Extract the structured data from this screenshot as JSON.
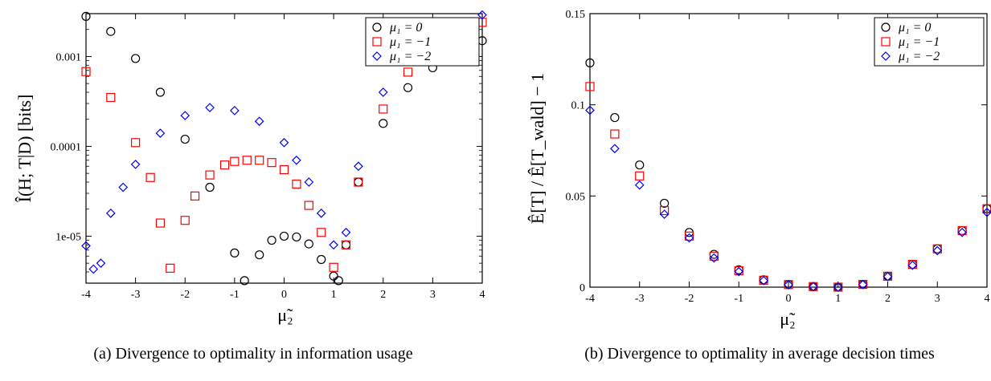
{
  "captions": {
    "a": "(a) Divergence to optimality in information usage",
    "b": "(b) Divergence to optimality in average decision times"
  },
  "colors": {
    "mu0": "#000000",
    "mu1": "#ff0000",
    "mu2": "#0000ff"
  },
  "chart_data": [
    {
      "type": "scatter",
      "xlabel": "μ̃₂",
      "ylabel": "Î(H; T|D) [bits]",
      "yscale": "log",
      "xlim": [
        -4,
        4
      ],
      "ylim": [
        3e-06,
        0.003
      ],
      "xticks": [
        "-4",
        "-3",
        "-2",
        "-1",
        "0",
        "1",
        "2",
        "3",
        "4"
      ],
      "yticks": [
        "1e-05",
        "0.0001",
        "0.001"
      ],
      "legend_position": "top-right",
      "series": [
        {
          "name": "μ₁ = 0",
          "marker": "circle",
          "color": "#000000",
          "x": [
            -4,
            -3.5,
            -3,
            -2.5,
            -2,
            -1.5,
            -1,
            -0.8,
            -0.5,
            -0.25,
            0,
            0.25,
            0.5,
            0.75,
            1,
            1.1,
            1.25,
            1.5,
            2,
            2.5,
            3,
            3.5,
            4
          ],
          "y": [
            0.0028,
            0.0019,
            0.00095,
            0.0004,
            0.00012,
            3.5e-05,
            6.5e-06,
            3.2e-06,
            6.2e-06,
            9e-06,
            1e-05,
            9.8e-06,
            8.2e-06,
            5.5e-06,
            3.6e-06,
            3.2e-06,
            8e-06,
            4e-05,
            0.00018,
            0.00045,
            0.00075,
            0.0011,
            0.0015
          ]
        },
        {
          "name": "μ₁ = −1",
          "marker": "square",
          "color": "#ff0000",
          "x": [
            -4,
            -3.5,
            -3,
            -2.7,
            -2.5,
            -2.3,
            -2,
            -1.8,
            -1.5,
            -1.2,
            -1,
            -0.75,
            -0.5,
            -0.25,
            0,
            0.25,
            0.5,
            0.75,
            1,
            1.25,
            1.5,
            2,
            2.5,
            3,
            3.5,
            4
          ],
          "y": [
            0.00068,
            0.00035,
            0.00011,
            4.5e-05,
            1.4e-05,
            4.4e-06,
            1.5e-05,
            2.8e-05,
            4.8e-05,
            6.2e-05,
            6.8e-05,
            7e-05,
            7e-05,
            6.6e-05,
            5.5e-05,
            3.8e-05,
            2.2e-05,
            1.1e-05,
            4.5e-06,
            8e-06,
            4e-05,
            0.00026,
            0.00067,
            0.0011,
            0.0016,
            0.0024
          ]
        },
        {
          "name": "μ₁ = −2",
          "marker": "diamond",
          "color": "#0000ff",
          "x": [
            -4,
            -3.85,
            -3.7,
            -3.5,
            -3.25,
            -3,
            -2.5,
            -2,
            -1.5,
            -1,
            -0.5,
            0,
            0.25,
            0.5,
            0.75,
            1,
            1.25,
            1.5,
            2,
            2.5,
            3,
            3.5,
            4
          ],
          "y": [
            7.8e-06,
            4.3e-06,
            5e-06,
            1.8e-05,
            3.5e-05,
            6.3e-05,
            0.00014,
            0.00022,
            0.00027,
            0.00025,
            0.00019,
            0.00011,
            7e-05,
            4e-05,
            1.8e-05,
            8e-06,
            1.1e-05,
            6e-05,
            0.0004,
            0.00095,
            0.0016,
            0.0022,
            0.0029
          ]
        }
      ]
    },
    {
      "type": "scatter",
      "xlabel": "μ̃₂",
      "ylabel": "Ê[T] / Ê[T_wald] − 1",
      "xlim": [
        -4,
        4
      ],
      "ylim": [
        0,
        0.15
      ],
      "xticks": [
        "-4",
        "-3",
        "-2",
        "-1",
        "0",
        "1",
        "2",
        "3",
        "4"
      ],
      "yticks": [
        "0",
        "0.05",
        "0.1",
        "0.15"
      ],
      "legend_position": "top-right",
      "series": [
        {
          "name": "μ₁ = 0",
          "marker": "circle",
          "color": "#000000",
          "x": [
            -4,
            -3.5,
            -3,
            -2.5,
            -2,
            -1.5,
            -1,
            -0.5,
            0,
            0.5,
            1,
            1.5,
            2,
            2.5,
            3,
            3.5,
            4
          ],
          "y": [
            0.123,
            0.093,
            0.067,
            0.046,
            0.03,
            0.018,
            0.0095,
            0.004,
            0.0015,
            0.0003,
            0,
            0.0015,
            0.006,
            0.0125,
            0.021,
            0.031,
            0.043
          ]
        },
        {
          "name": "μ₁ = −1",
          "marker": "square",
          "color": "#ff0000",
          "x": [
            -4,
            -3.5,
            -3,
            -2.5,
            -2,
            -1.5,
            -1,
            -0.5,
            0,
            0.5,
            1,
            1.5,
            2,
            2.5,
            3,
            3.5,
            4
          ],
          "y": [
            0.11,
            0.084,
            0.061,
            0.042,
            0.028,
            0.017,
            0.009,
            0.0038,
            0.0014,
            0.0003,
            0,
            0.0015,
            0.006,
            0.0125,
            0.021,
            0.031,
            0.043
          ]
        },
        {
          "name": "μ₁ = −2",
          "marker": "diamond",
          "color": "#0000ff",
          "x": [
            -4,
            -3.5,
            -3,
            -2.5,
            -2,
            -1.5,
            -1,
            -0.5,
            0,
            0.5,
            1,
            1.5,
            2,
            2.5,
            3,
            3.5,
            4
          ],
          "y": [
            0.097,
            0.076,
            0.056,
            0.04,
            0.027,
            0.016,
            0.0085,
            0.0036,
            0.0013,
            0.0003,
            0,
            0.0014,
            0.0058,
            0.012,
            0.02,
            0.03,
            0.041
          ]
        }
      ]
    }
  ]
}
